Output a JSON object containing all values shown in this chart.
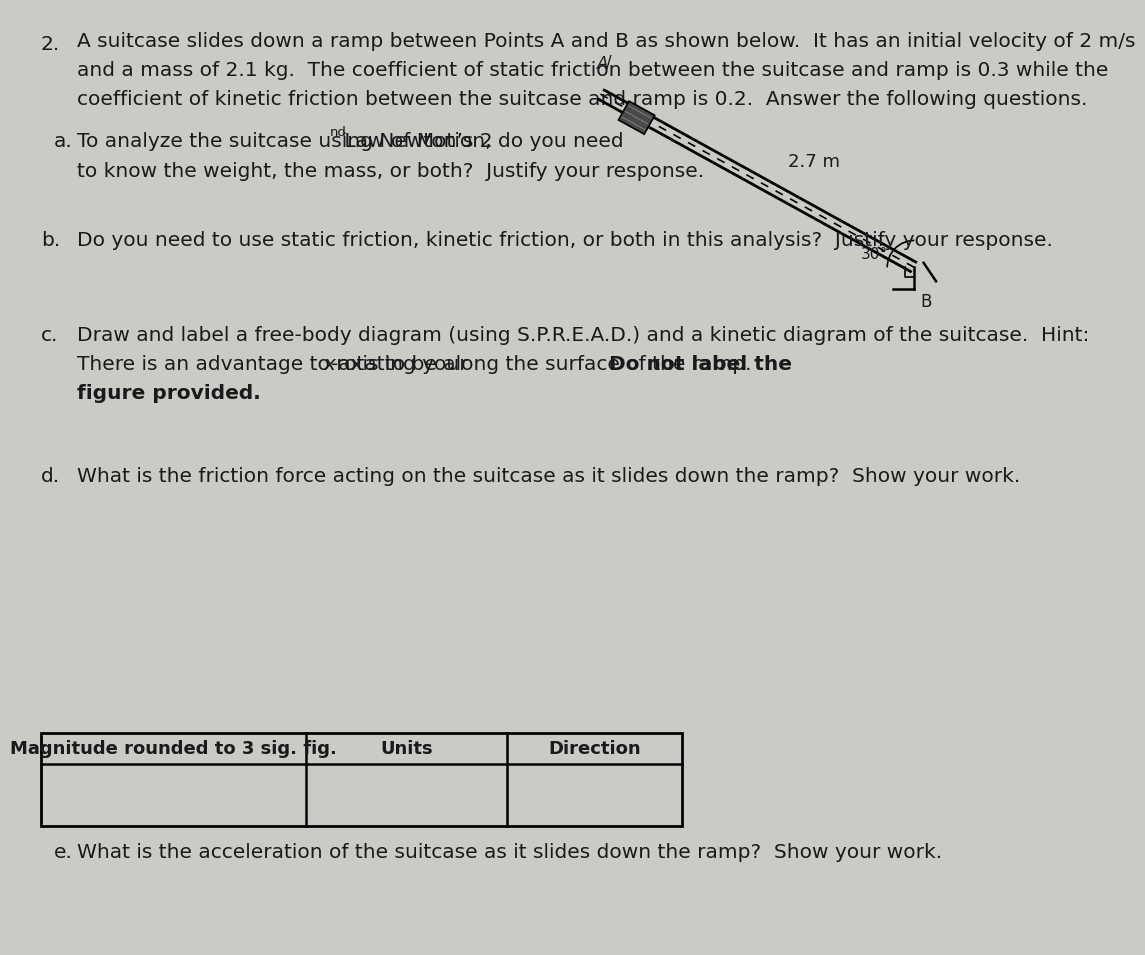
{
  "background_color": "#cccac6",
  "text_color": "#1a1a1a",
  "intro_text_line1": "A suitcase slides down a ramp between Points A and B as shown below.  It has an initial velocity of 2 m/s",
  "intro_text_line2": "and a mass of 2.1 kg.  The coefficient of static friction between the suitcase and ramp is 0.3 while the",
  "intro_text_line3": "coefficient of kinetic friction between the suitcase and ramp is 0.2.  Answer the following questions.",
  "part_a_line1_pre": "To analyze the suitcase using Newton’s 2",
  "part_a_superscript": "nd",
  "part_a_line1_post": " Law of Motion, do you need",
  "part_a_line2": "to know the weight, the mass, or both?  Justify your response.",
  "part_b_text": "Do you need to use static friction, kinetic friction, or both in this analysis?  Justify your response.",
  "part_c_line1": "Draw and label a free-body diagram (using S.P.R.E.A.D.) and a kinetic diagram of the suitcase.  Hint:",
  "part_c_line2_pre": "There is an advantage to rotating your ",
  "part_c_line2_x": "x",
  "part_c_line2_post": "-axis to be along the surface of the ramp.  ",
  "part_c_line2_bold": "Do not label the",
  "part_c_line3_bold": "figure provided.",
  "part_d_text": "What is the friction force acting on the suitcase as it slides down the ramp?  Show your work.",
  "part_e_text": "What is the acceleration of the suitcase as it slides down the ramp?  Show your work.",
  "table_col1": "Magnitude rounded to 3 sig. fig.",
  "table_col2": "Units",
  "table_col3": "Direction",
  "font_size_main": 14.5,
  "font_size_small": 9.5,
  "font_size_table": 13.0
}
